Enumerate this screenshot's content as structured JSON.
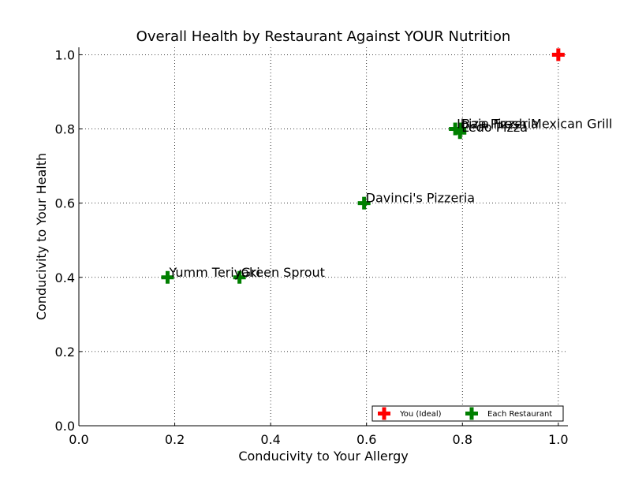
{
  "chart_data": {
    "type": "scatter",
    "title": "Overall Health by Restaurant Against YOUR Nutrition",
    "xlabel": "Conducivity to Your Allergy",
    "ylabel": "Conducivity to Your Health",
    "xlim": [
      0.0,
      1.02
    ],
    "ylim": [
      0.0,
      1.02
    ],
    "xticks": [
      "0.0",
      "0.2",
      "0.4",
      "0.6",
      "0.8",
      "1.0"
    ],
    "yticks": [
      "0.0",
      "0.2",
      "0.4",
      "0.6",
      "0.8",
      "1.0"
    ],
    "grid": true,
    "legend_position": "bottom-right",
    "series": [
      {
        "name": "You (Ideal)",
        "color": "#ff0000",
        "marker": "plus",
        "points": [
          {
            "x": 1.0,
            "y": 1.0,
            "label": ""
          }
        ]
      },
      {
        "name": "Each Restaurant",
        "color": "#007f00",
        "marker": "plus",
        "points": [
          {
            "x": 0.795,
            "y": 0.8,
            "label": "Baja Fresh Mexican Grill"
          },
          {
            "x": 0.785,
            "y": 0.8,
            "label": "Ibiza Pizzeria"
          },
          {
            "x": 0.795,
            "y": 0.79,
            "label": "Ledo Pizza"
          },
          {
            "x": 0.595,
            "y": 0.6,
            "label": "Davinci's Pizzeria"
          },
          {
            "x": 0.185,
            "y": 0.4,
            "label": "Yumm Teriyaki"
          },
          {
            "x": 0.335,
            "y": 0.4,
            "label": "Green Sprout"
          }
        ]
      }
    ]
  }
}
